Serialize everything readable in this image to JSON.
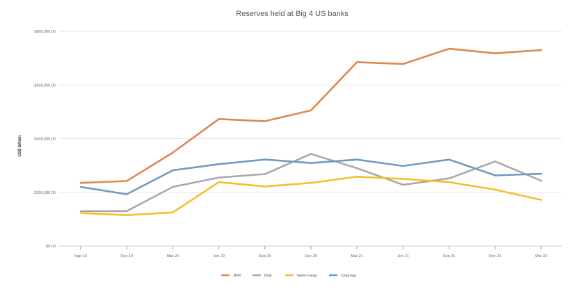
{
  "chart_data": {
    "type": "line",
    "title": "Reserves held at Big 4 US banks",
    "xlabel": "",
    "ylabel": "US$ billion",
    "categories": [
      "Sep-19",
      "Dec-19",
      "Mar-20",
      "Jun-20",
      "Sep-20",
      "Dec-20",
      "Mar-21",
      "Jun-21",
      "Sep-21",
      "Dec-21",
      "Mar-22"
    ],
    "ylim": [
      0,
      800000
    ],
    "yticks": [
      0,
      200000,
      400000,
      600000,
      800000
    ],
    "ytick_labels": [
      "$0.00",
      "$200,000.00",
      "$400,000.00",
      "$600,000.00",
      "$800,000.00"
    ],
    "grid": true,
    "legend_position": "bottom",
    "series": [
      {
        "name": "JPM",
        "color": "#E0874C",
        "values": [
          235000,
          242000,
          348000,
          473000,
          465000,
          505000,
          685000,
          678000,
          735000,
          718000,
          730000
        ]
      },
      {
        "name": "BoA",
        "color": "#A9A9A9",
        "values": [
          130000,
          130000,
          220000,
          255000,
          268000,
          343000,
          290000,
          228000,
          252000,
          315000,
          243000
        ]
      },
      {
        "name": "Wells Fargo",
        "color": "#F2C12E",
        "values": [
          123000,
          115000,
          125000,
          238000,
          222000,
          235000,
          258000,
          250000,
          238000,
          210000,
          172000
        ]
      },
      {
        "name": "Citigroup",
        "color": "#6E9BC5",
        "values": [
          220000,
          193000,
          282000,
          305000,
          322000,
          309000,
          322000,
          298000,
          322000,
          263000,
          269000
        ]
      }
    ]
  }
}
